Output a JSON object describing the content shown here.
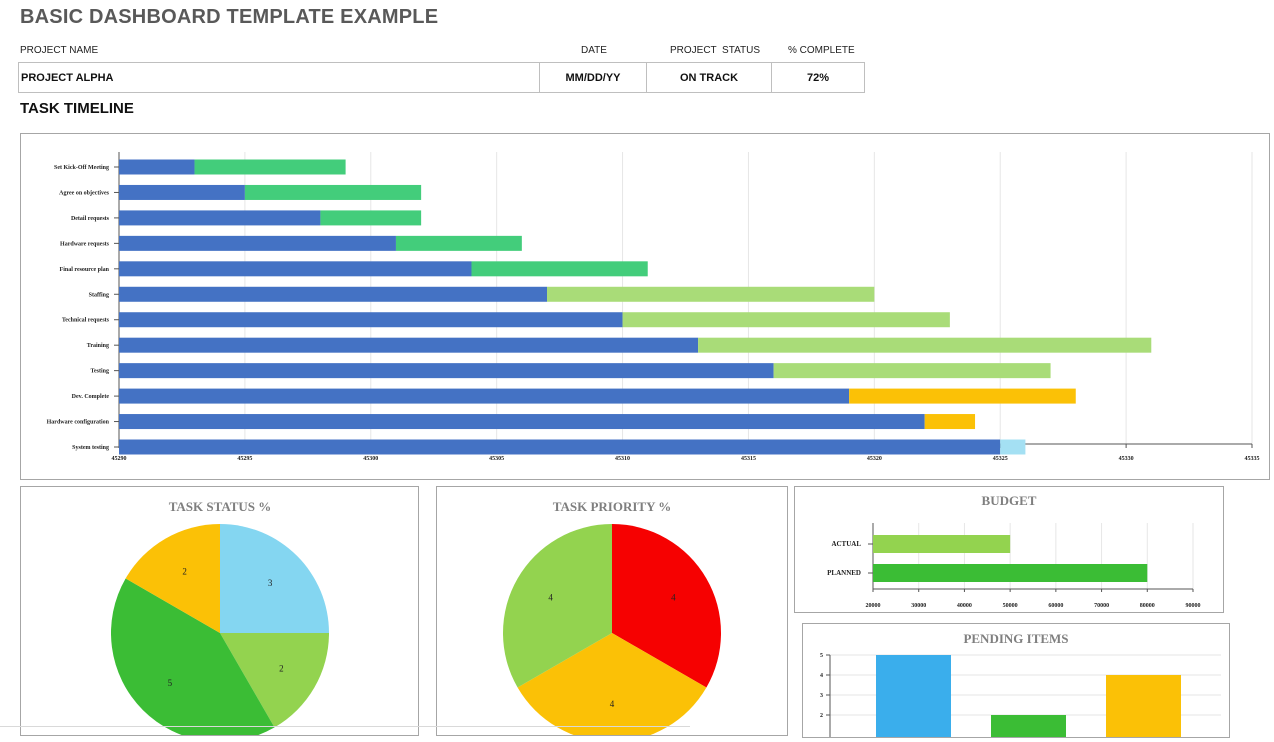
{
  "header": {
    "title": "BASIC DASHBOARD TEMPLATE EXAMPLE",
    "labels": {
      "project_name": "PROJECT NAME",
      "date": "DATE",
      "project_status": "PROJECT  STATUS",
      "percent_complete": "% COMPLETE"
    },
    "values": {
      "project_name": "PROJECT ALPHA",
      "date": "MM/DD/YY",
      "project_status": "ON TRACK",
      "percent_complete": "72%"
    }
  },
  "timeline": {
    "section_title": "TASK TIMELINE"
  },
  "colors": {
    "start_bar": "#4472c4",
    "dark_green": "#43cd7b",
    "light_green": "#a9dc78",
    "orange": "#fbc106",
    "light_blue": "#a4e0f3",
    "pie_blue": "#84d6f1",
    "pie_light_green": "#93d34f",
    "pie_green": "#3bbd35",
    "pie_orange": "#fbc106",
    "red": "#f60101",
    "bar_blue": "#3aaeec"
  },
  "chart_data": [
    {
      "type": "bar",
      "subtype": "gantt-stacked-horizontal",
      "title": "",
      "categories": [
        "Set Kick-Off Meeting",
        "Agree on objectives",
        "Detail requests",
        "Hardware requests",
        "Final resource plan",
        "Staffing",
        "Technical requests",
        "Training",
        "Testing",
        "Dev. Complete",
        "Hardware configuration",
        "System testing"
      ],
      "series": [
        {
          "role": "start",
          "values": [
            45293,
            45295,
            45298,
            45301,
            45304,
            45307,
            45310,
            45313,
            45316,
            45319,
            45322,
            45325
          ],
          "color": "start_bar"
        },
        {
          "role": "duration",
          "values": [
            6,
            7,
            4,
            5,
            7,
            13,
            13,
            18,
            11,
            9,
            2,
            1
          ],
          "colors": [
            "dark_green",
            "dark_green",
            "dark_green",
            "dark_green",
            "dark_green",
            "light_green",
            "light_green",
            "light_green",
            "light_green",
            "orange",
            "orange",
            "light_blue"
          ]
        }
      ],
      "xlim": [
        45290,
        45335
      ],
      "xticks": [
        "45290",
        "45295",
        "45300",
        "45305",
        "45310",
        "45315",
        "45320",
        "45325",
        "45330",
        "45335"
      ],
      "grid": true
    },
    {
      "type": "pie",
      "title": "TASK STATUS %",
      "values": [
        3,
        2,
        5,
        2
      ],
      "colors": [
        "pie_blue",
        "pie_light_green",
        "pie_green",
        "pie_orange"
      ]
    },
    {
      "type": "pie",
      "title": "TASK PRIORITY %",
      "values": [
        4,
        4,
        4
      ],
      "colors": [
        "red",
        "orange",
        "pie_light_green"
      ]
    },
    {
      "type": "bar",
      "subtype": "horizontal",
      "title": "BUDGET",
      "categories": [
        "ACTUAL",
        "PLANNED"
      ],
      "values": [
        50000,
        80000
      ],
      "colors": [
        "pie_light_green",
        "pie_green"
      ],
      "xlim": [
        20000,
        90000
      ],
      "xticks": [
        "20000",
        "30000",
        "40000",
        "50000",
        "60000",
        "70000",
        "80000",
        "90000"
      ],
      "grid": true
    },
    {
      "type": "bar",
      "title": "PENDING ITEMS",
      "values": [
        5,
        2,
        4
      ],
      "colors": [
        "bar_blue",
        "pie_green",
        "orange"
      ],
      "ylim": [
        0,
        5
      ],
      "yticks": [
        "2",
        "3",
        "4",
        "5"
      ],
      "grid": true
    }
  ]
}
